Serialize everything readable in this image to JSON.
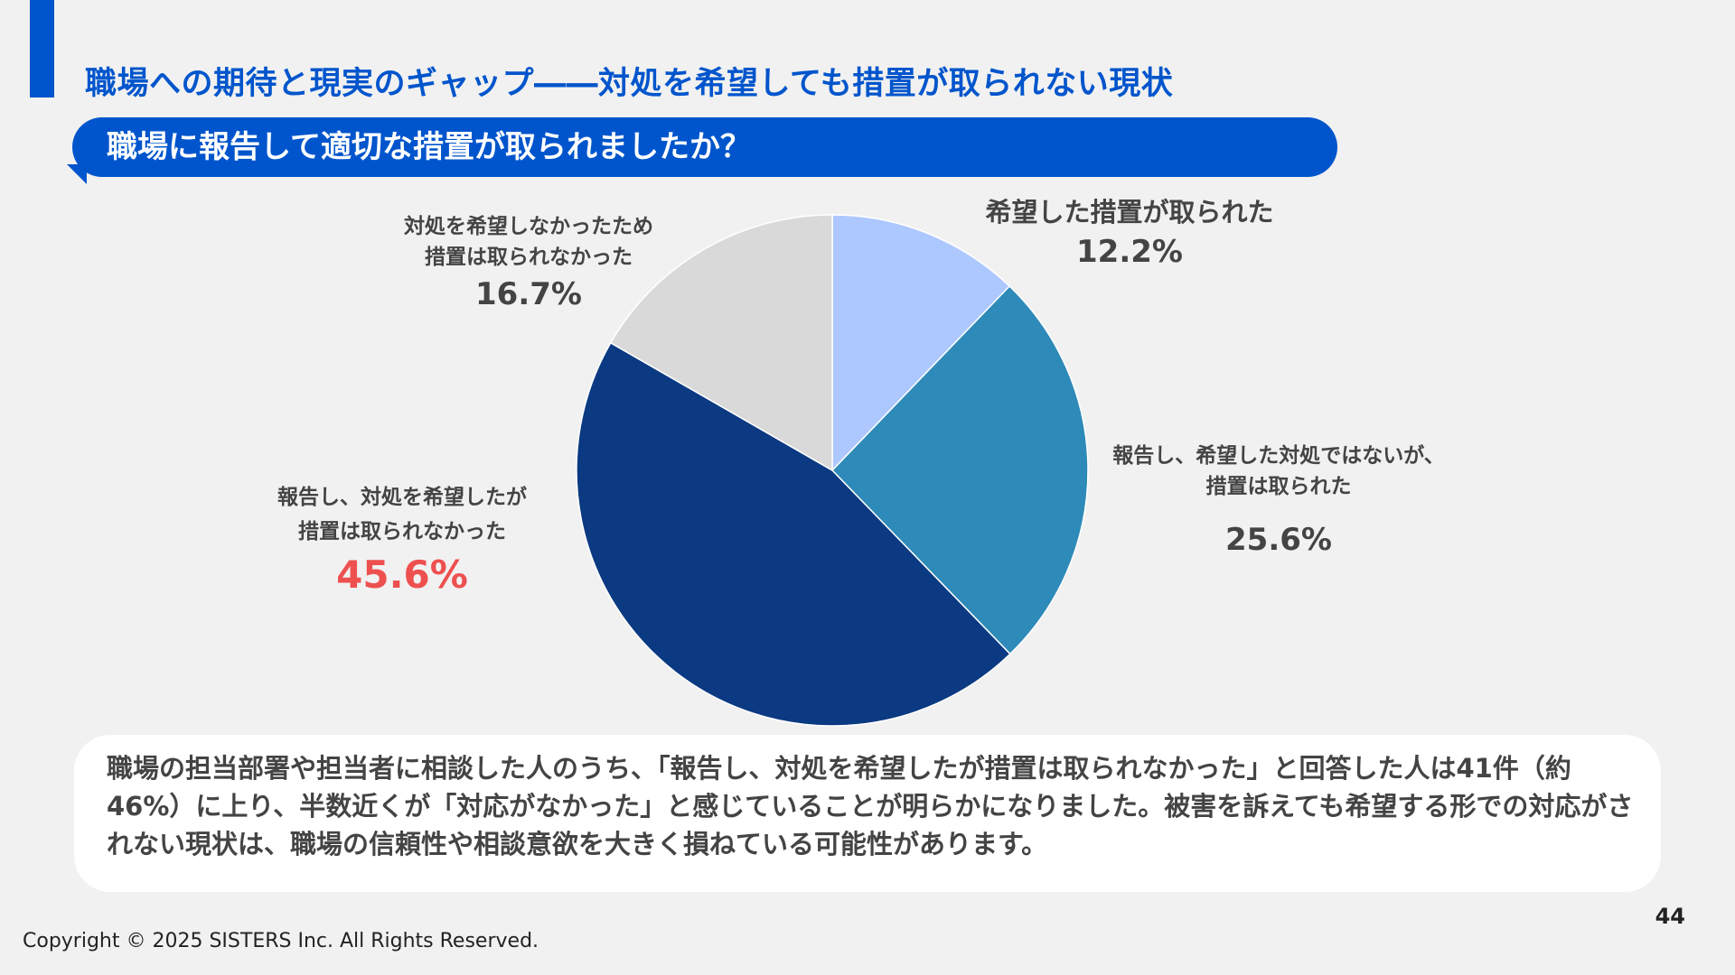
{
  "slide": {
    "title": "職場への期待と現実のギャップ――対処を希望しても措置が取られない現状",
    "question": "職場に報告して適切な措置が取られましたか？",
    "summary": "職場の担当部署や担当者に相談した人のうち、「報告し、対処を希望したが措置は取られなかった」と回答した人は41件（約46%）に上り、半数近くが「対応がなかった」と感じていることが明らかになりました。被害を訴えても希望する形での対応がされない現状は、職場の信頼性や相談意欲を大きく損ねている可能性があります。",
    "page_number": "44",
    "copyright": "Copyright © 2025 SISTERS Inc. All Rights Reserved.",
    "accent_color": "#0055cc"
  },
  "chart_data": {
    "type": "pie",
    "start_angle_deg": 0,
    "direction": "clockwise",
    "slices": [
      {
        "label_lines": [
          "希望した措置が取られた"
        ],
        "value": 12.2,
        "pct_label": "12.2%",
        "color": "#adc8fe",
        "highlight": false
      },
      {
        "label_lines": [
          "報告し、希望した対処ではないが、",
          "措置は取られた"
        ],
        "value": 25.6,
        "pct_label": "25.6%",
        "color": "#2e8ab8",
        "highlight": false
      },
      {
        "label_lines": [
          "報告し、対処を希望したが",
          "措置は取られなかった"
        ],
        "value": 45.6,
        "pct_label": "45.6%",
        "color": "#0b3a82",
        "highlight": true,
        "highlight_color": "#ee5050"
      },
      {
        "label_lines": [
          "対処を希望しなかったため",
          "措置は取られなかった"
        ],
        "value": 16.7,
        "pct_label": "16.7%",
        "color": "#d9d9d9",
        "highlight": false
      }
    ]
  }
}
